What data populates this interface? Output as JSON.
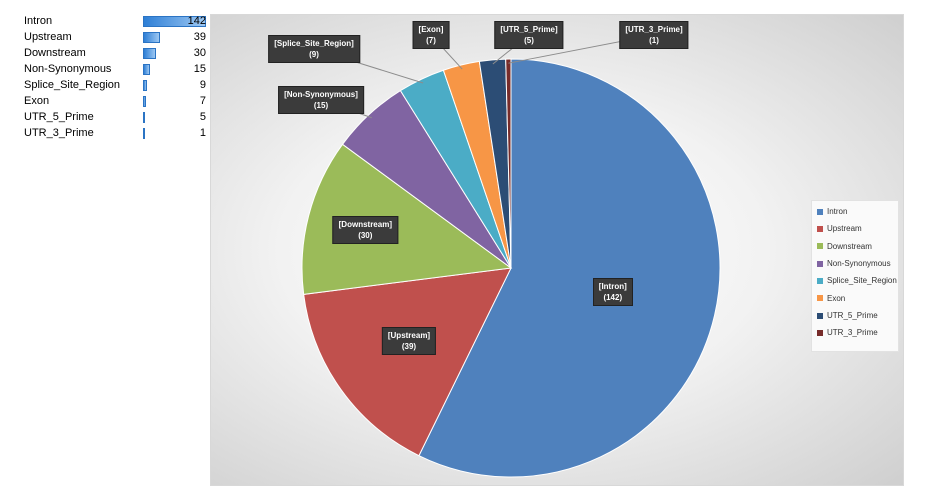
{
  "chart_data": {
    "type": "pie",
    "title": "",
    "categories": [
      "Intron",
      "Upstream",
      "Downstream",
      "Non-Synonymous",
      "Splice_Site_Region",
      "Exon",
      "UTR_5_Prime",
      "UTR_3_Prime"
    ],
    "values": [
      142,
      39,
      30,
      15,
      9,
      7,
      5,
      1
    ],
    "colors": [
      "#4f81bd",
      "#c0504d",
      "#9bbb59",
      "#8064a2",
      "#4bacc6",
      "#f79646",
      "#2c4d75",
      "#772c2a"
    ],
    "legend": "right",
    "data_labels": [
      "[Intron]\n(142)",
      "[Upstream]\n(39)",
      "[Downstream]\n(30)",
      "[Non-Synonymous]\n(15)",
      "[Splice_Site_Region]\n(9)",
      "[Exon]\n(7)",
      "[UTR_5_Prime]\n(5)",
      "[UTR_3_Prime]\n(1)"
    ]
  },
  "table": [
    {
      "name": "Intron",
      "value": "142"
    },
    {
      "name": "Upstream",
      "value": "39"
    },
    {
      "name": "Downstream",
      "value": "30"
    },
    {
      "name": "Non-Synonymous",
      "value": "15"
    },
    {
      "name": "Splice_Site_Region",
      "value": "9"
    },
    {
      "name": "Exon",
      "value": "7"
    },
    {
      "name": "UTR_5_Prime",
      "value": "5"
    },
    {
      "name": "UTR_3_Prime",
      "value": "1"
    }
  ]
}
